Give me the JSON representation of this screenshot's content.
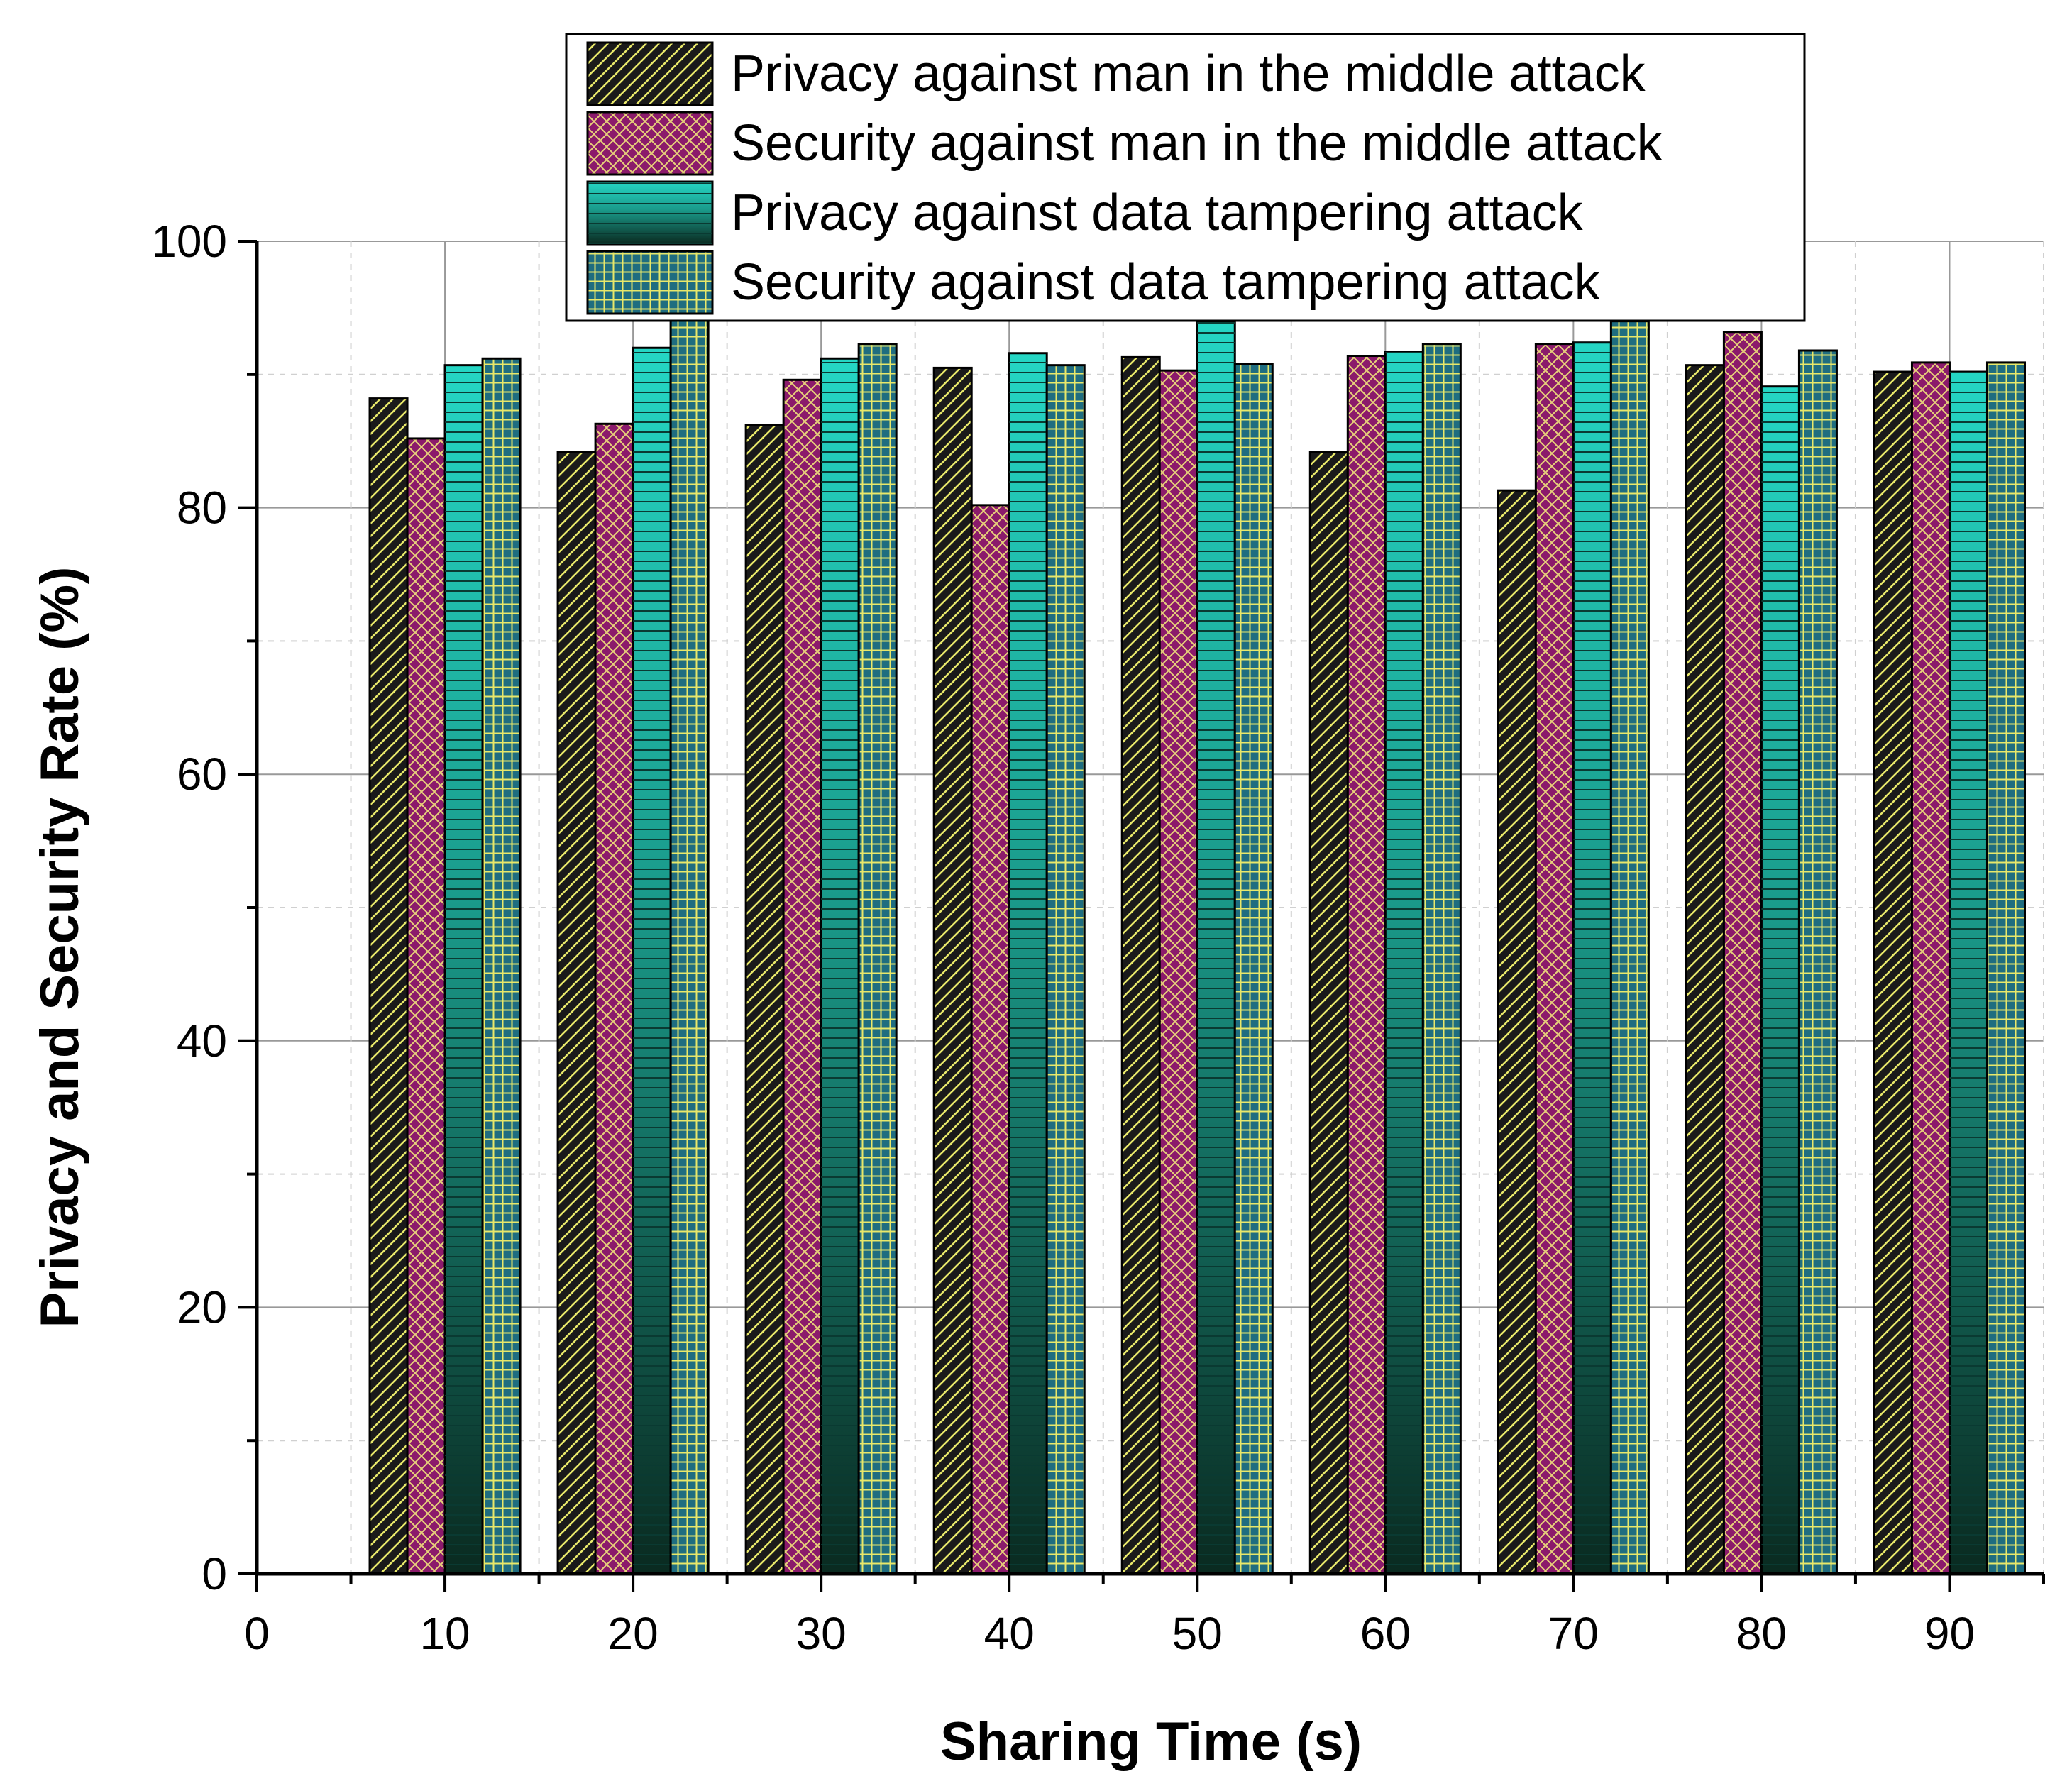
{
  "chart_data": {
    "type": "bar",
    "xlabel": "Sharing Time (s)",
    "ylabel": "Privacy and Security Rate (%)",
    "xlim": [
      0,
      95
    ],
    "ylim": [
      0,
      100
    ],
    "x_ticks": [
      0,
      10,
      20,
      30,
      40,
      50,
      60,
      70,
      80,
      90
    ],
    "y_ticks": [
      0,
      20,
      40,
      60,
      80,
      100
    ],
    "grid": true,
    "legend_position": "top-right",
    "categories": [
      10,
      20,
      30,
      40,
      50,
      60,
      70,
      80,
      90
    ],
    "series": [
      {
        "name": "Privacy against man in the middle attack",
        "values": [
          88.2,
          84.2,
          86.2,
          90.5,
          91.3,
          84.2,
          81.3,
          90.7,
          90.2
        ],
        "color": "#1a1a1a",
        "pattern": "diagonal-hatch"
      },
      {
        "name": "Security against man in the middle attack",
        "values": [
          85.2,
          86.3,
          89.6,
          80.2,
          90.3,
          91.4,
          92.3,
          93.2,
          90.9
        ],
        "color": "#8b1a6b",
        "pattern": "crosshatch"
      },
      {
        "name": "Privacy against data tampering attack",
        "values": [
          90.7,
          92.0,
          91.2,
          91.6,
          94.0,
          91.7,
          92.4,
          89.1,
          90.2
        ],
        "color": "#22c9b8",
        "pattern": "horizontal-lines"
      },
      {
        "name": "Security against data tampering attack",
        "values": [
          91.2,
          94.2,
          92.3,
          90.7,
          90.8,
          92.3,
          94.0,
          91.8,
          90.9
        ],
        "color": "#1f6d80",
        "pattern": "grid"
      }
    ]
  }
}
